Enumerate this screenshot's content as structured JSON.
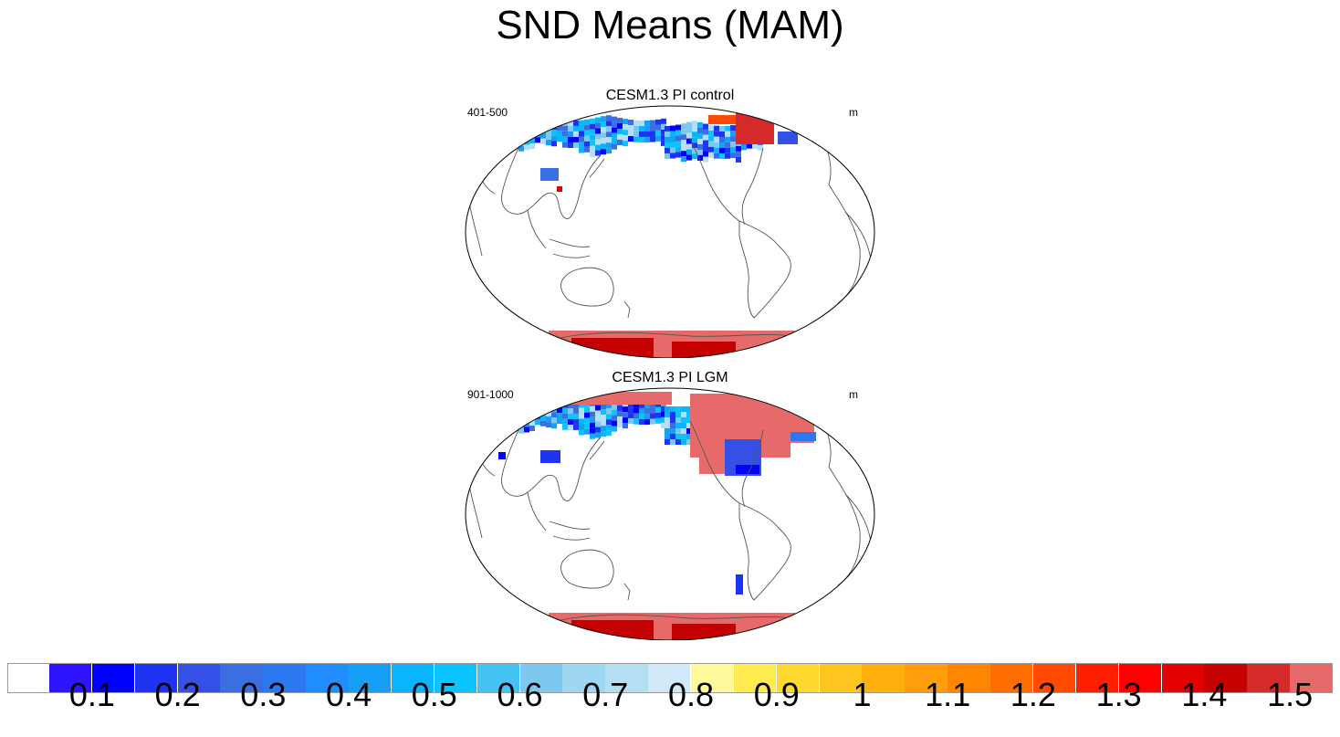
{
  "title": "SND Means (MAM)",
  "panels": [
    {
      "title": "CESM1.3 PI control",
      "left": "401-500",
      "right": "m",
      "kind": "control"
    },
    {
      "title": "CESM1.3 PI LGM",
      "left": "901-1000",
      "right": "m",
      "kind": "lgm"
    }
  ],
  "colorbar": {
    "colors": [
      "#ffffff",
      "#2e13ff",
      "#0000ff",
      "#1f33f2",
      "#3450e6",
      "#3b6ee0",
      "#2b78f0",
      "#1f8cff",
      "#159ff5",
      "#0ab4ff",
      "#0bc3ff",
      "#44c2f3",
      "#7dc9ee",
      "#9fd6f1",
      "#b4dff3",
      "#cfe9f8",
      "#fff99b",
      "#ffea50",
      "#ffd92d",
      "#ffc51f",
      "#ffb00f",
      "#ff9d0a",
      "#ff8600",
      "#ff6c00",
      "#ff4a00",
      "#ff1f00",
      "#ff0000",
      "#e20000",
      "#c40000",
      "#d62a2a",
      "#e76a6a"
    ],
    "labels": [
      "0.1",
      "0.2",
      "0.3",
      "0.4",
      "0.5",
      "0.6",
      "0.7",
      "0.8",
      "0.9",
      "1",
      "1.1",
      "1.2",
      "1.3",
      "1.4",
      "1.5"
    ]
  }
}
